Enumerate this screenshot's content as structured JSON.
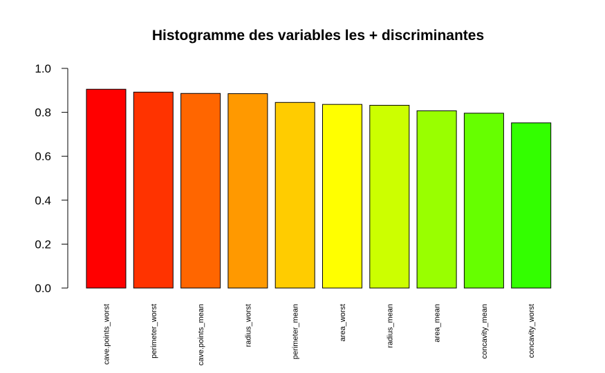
{
  "chart_data": {
    "type": "bar",
    "title": "Histogramme des variables les + discriminantes",
    "xlabel": "",
    "ylabel": "",
    "ylim": [
      0,
      1
    ],
    "yticks": [
      "0.0",
      "0.2",
      "0.4",
      "0.6",
      "0.8",
      "1.0"
    ],
    "categories": [
      "cave.points_worst",
      "perimeter_worst",
      "cave.points_mean",
      "radius_worst",
      "perimeter_mean",
      "area_worst",
      "radius_mean",
      "area_mean",
      "concavity_mean",
      "concavity_worst"
    ],
    "values": [
      0.905,
      0.892,
      0.886,
      0.885,
      0.845,
      0.836,
      0.832,
      0.807,
      0.796,
      0.752
    ],
    "colors": [
      "#FF0000",
      "#FF3300",
      "#FF6600",
      "#FF9900",
      "#FFCC00",
      "#FFFF00",
      "#CCFF00",
      "#99FF00",
      "#66FF00",
      "#33FF00"
    ],
    "grid": false,
    "legend": "none"
  }
}
